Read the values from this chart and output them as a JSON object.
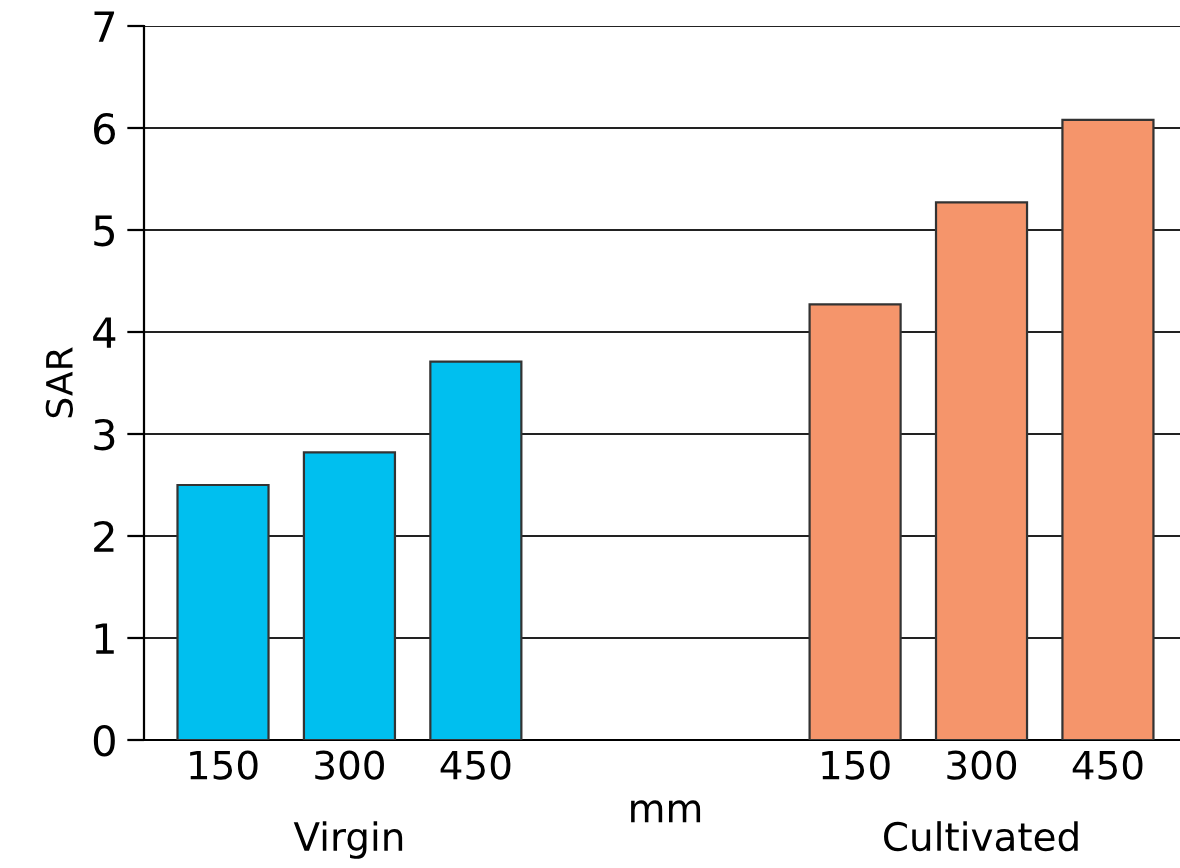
{
  "chart_data": {
    "type": "bar",
    "ylabel": "SAR",
    "categories": [
      "150",
      "300",
      "450",
      null,
      null,
      "150",
      "300",
      "450"
    ],
    "values": [
      2.5,
      2.82,
      3.71,
      null,
      null,
      4.27,
      5.27,
      6.08
    ],
    "colors": [
      "#00bfef",
      "#00bfef",
      "#00bfef",
      null,
      null,
      "#f5956b",
      "#f5956b",
      "#f5956b"
    ],
    "ylim": [
      0,
      7
    ],
    "yticks": [
      0,
      1,
      2,
      3,
      4,
      5,
      6,
      7
    ],
    "grid": "y",
    "annotations": [
      "Virgin",
      "mm",
      "Cultivated"
    ]
  }
}
